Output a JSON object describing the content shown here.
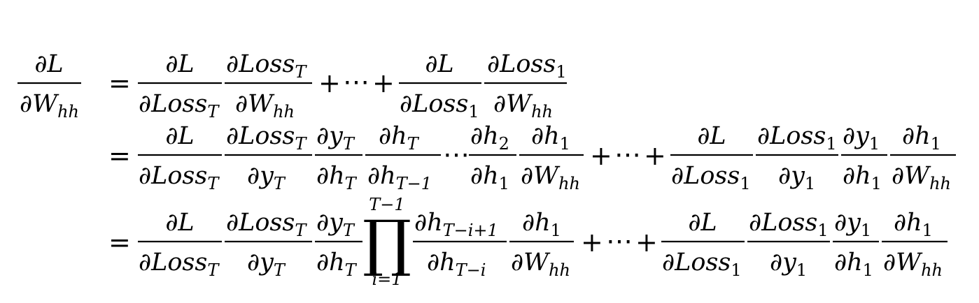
{
  "equation": {
    "lhs": {
      "num": "∂L",
      "den": "∂W",
      "den_sub": "hh"
    },
    "eq": "=",
    "plus": "+",
    "dots": "⋯",
    "line1": {
      "f1": {
        "num": "∂L",
        "den": "∂Loss",
        "den_sub": "T"
      },
      "f2": {
        "num": "∂Loss",
        "num_sub": "T",
        "den": "∂W",
        "den_sub": "hh"
      },
      "f3": {
        "num": "∂L",
        "den": "∂Loss",
        "den_sub": "1"
      },
      "f4": {
        "num": "∂Loss",
        "num_sub": "1",
        "den": "∂W",
        "den_sub": "hh"
      }
    },
    "line2": {
      "f1": {
        "num": "∂L",
        "den": "∂Loss",
        "den_sub": "T"
      },
      "f2": {
        "num": "∂Loss",
        "num_sub": "T",
        "den": "∂y",
        "den_sub": "T"
      },
      "f3": {
        "num": "∂y",
        "num_sub": "T",
        "den": "∂h",
        "den_sub": "T"
      },
      "f4": {
        "num": "∂h",
        "num_sub": "T",
        "den": "∂h",
        "den_sub": "T−1"
      },
      "f5": {
        "num": "∂h",
        "num_sub": "2",
        "den": "∂h",
        "den_sub": "1"
      },
      "f6": {
        "num": "∂h",
        "num_sub": "1",
        "den": "∂W",
        "den_sub": "hh"
      },
      "f7": {
        "num": "∂L",
        "den": "∂Loss",
        "den_sub": "1"
      },
      "f8": {
        "num": "∂Loss",
        "num_sub": "1",
        "den": "∂y",
        "den_sub": "1"
      },
      "f9": {
        "num": "∂y",
        "num_sub": "1",
        "den": "∂h",
        "den_sub": "1"
      },
      "f10": {
        "num": "∂h",
        "num_sub": "1",
        "den": "∂W",
        "den_sub": "hh"
      }
    },
    "line3": {
      "f1": {
        "num": "∂L",
        "den": "∂Loss",
        "den_sub": "T"
      },
      "f2": {
        "num": "∂Loss",
        "num_sub": "T",
        "den": "∂y",
        "den_sub": "T"
      },
      "f3": {
        "num": "∂y",
        "num_sub": "T",
        "den": "∂h",
        "den_sub": "T"
      },
      "prod": {
        "symbol": "∏",
        "upper": "T−1",
        "lower": "i=1"
      },
      "f4": {
        "num": "∂h",
        "num_sub": "T−i+1",
        "den": "∂h",
        "den_sub": "T−i"
      },
      "f5": {
        "num": "∂h",
        "num_sub": "1",
        "den": "∂W",
        "den_sub": "hh"
      },
      "f6": {
        "num": "∂L",
        "den": "∂Loss",
        "den_sub": "1"
      },
      "f7": {
        "num": "∂Loss",
        "num_sub": "1",
        "den": "∂y",
        "den_sub": "1"
      },
      "f8": {
        "num": "∂y",
        "num_sub": "1",
        "den": "∂h",
        "den_sub": "1"
      },
      "f9": {
        "num": "∂h",
        "num_sub": "1",
        "den": "∂W",
        "den_sub": "hh"
      }
    }
  }
}
